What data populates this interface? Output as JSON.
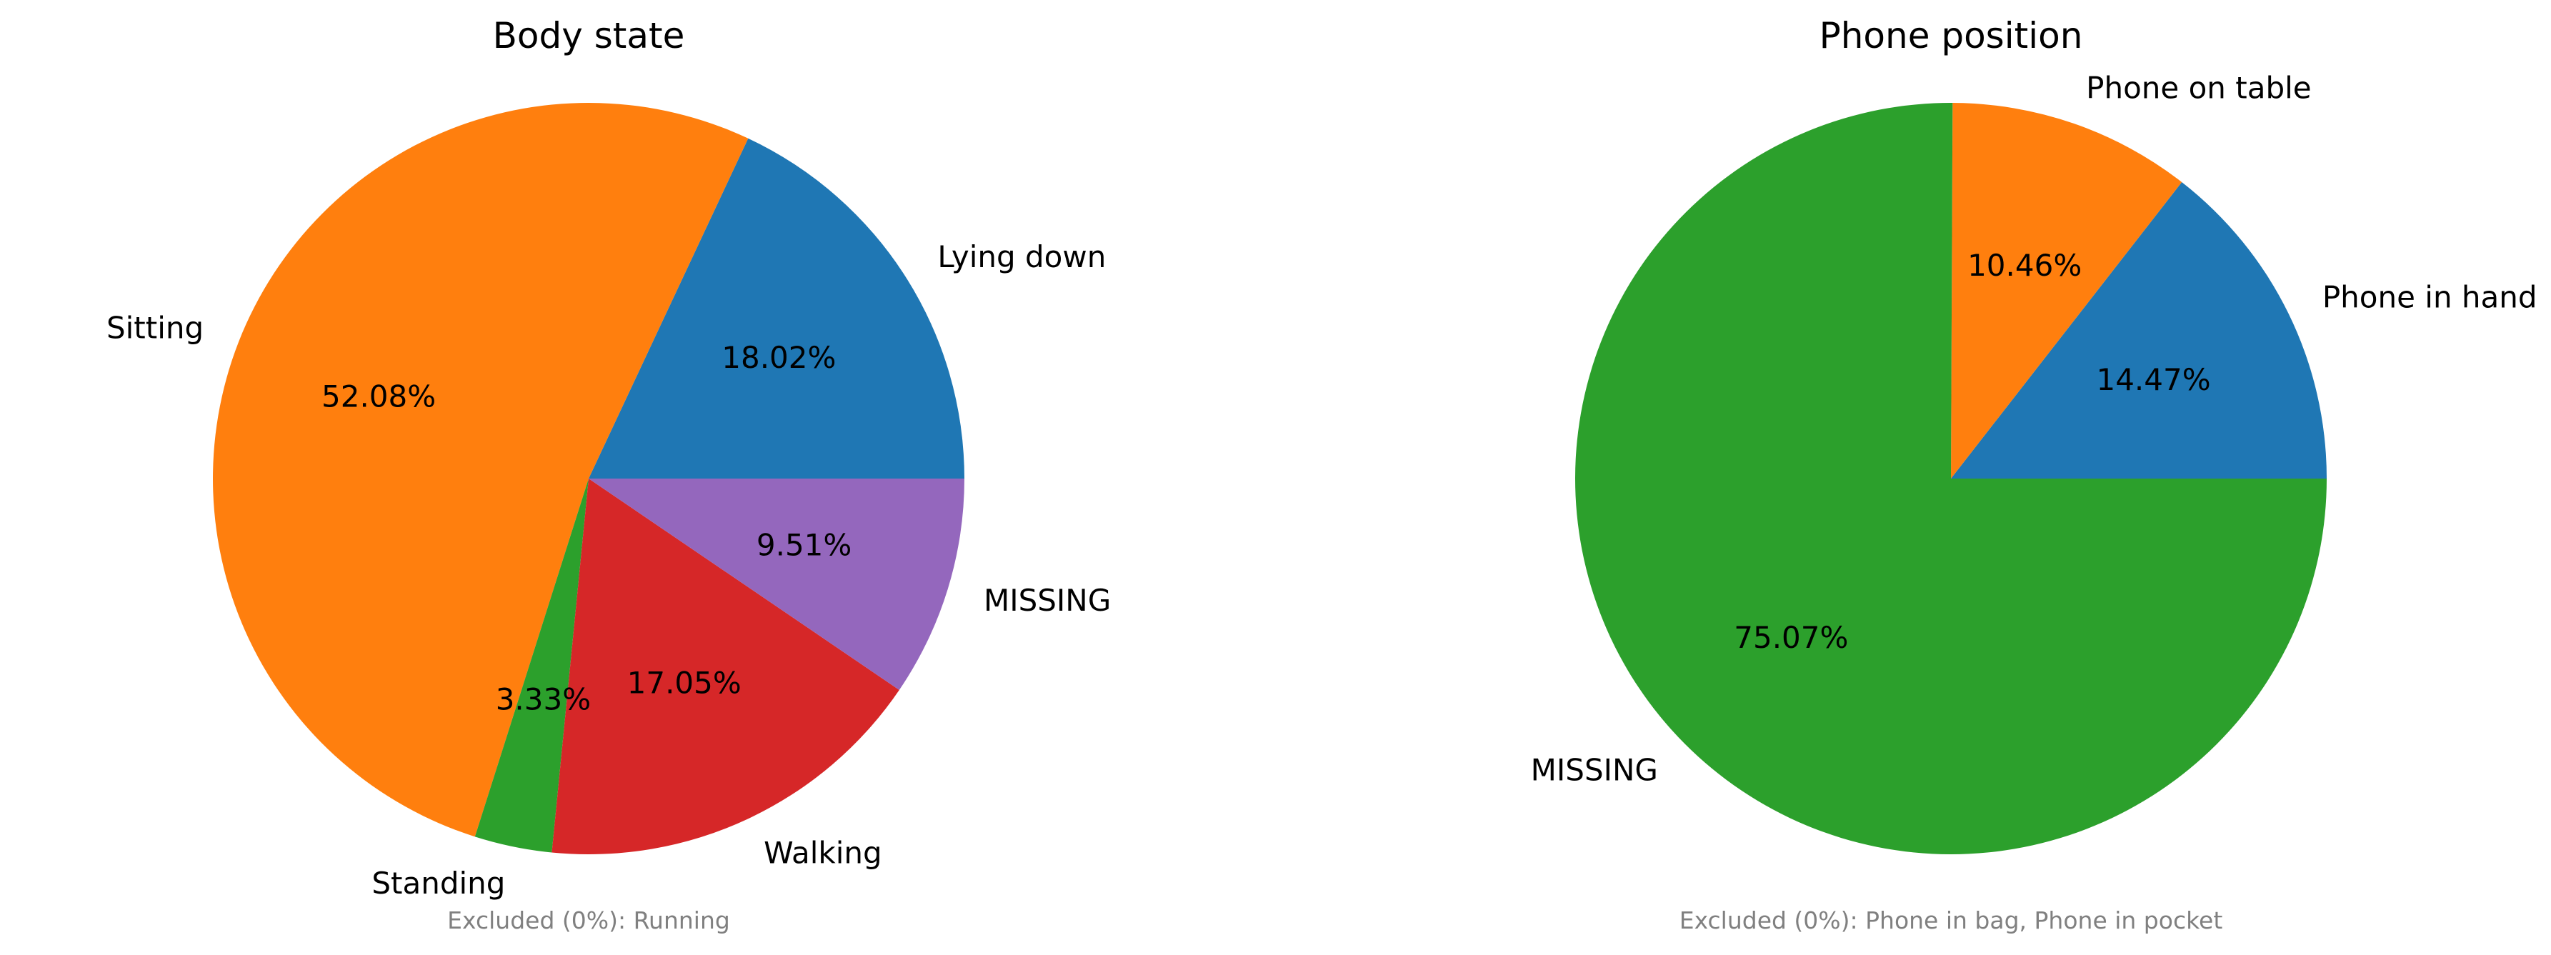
{
  "chart_data": [
    {
      "type": "pie",
      "title": "Body state",
      "categories": [
        "Lying down",
        "Sitting",
        "Standing",
        "Walking",
        "MISSING"
      ],
      "values": [
        18.02,
        52.08,
        3.33,
        17.05,
        9.51
      ],
      "value_labels": [
        "18.02%",
        "52.08%",
        "3.33%",
        "17.05%",
        "9.51%"
      ],
      "colors": [
        "#1f77b4",
        "#ff7f0e",
        "#2ca02c",
        "#d62728",
        "#9467bd"
      ],
      "start_angle": 0,
      "direction": "counterclockwise",
      "footnote": "Excluded (0%): Running"
    },
    {
      "type": "pie",
      "title": "Phone position",
      "categories": [
        "Phone in hand",
        "Phone on table",
        "MISSING"
      ],
      "values": [
        14.47,
        10.46,
        75.07
      ],
      "value_labels": [
        "14.47%",
        "10.46%",
        "75.07%"
      ],
      "colors": [
        "#1f77b4",
        "#ff7f0e",
        "#2ca02c"
      ],
      "start_angle": 0,
      "direction": "counterclockwise",
      "footnote": "Excluded (0%): Phone in bag, Phone in pocket"
    }
  ]
}
